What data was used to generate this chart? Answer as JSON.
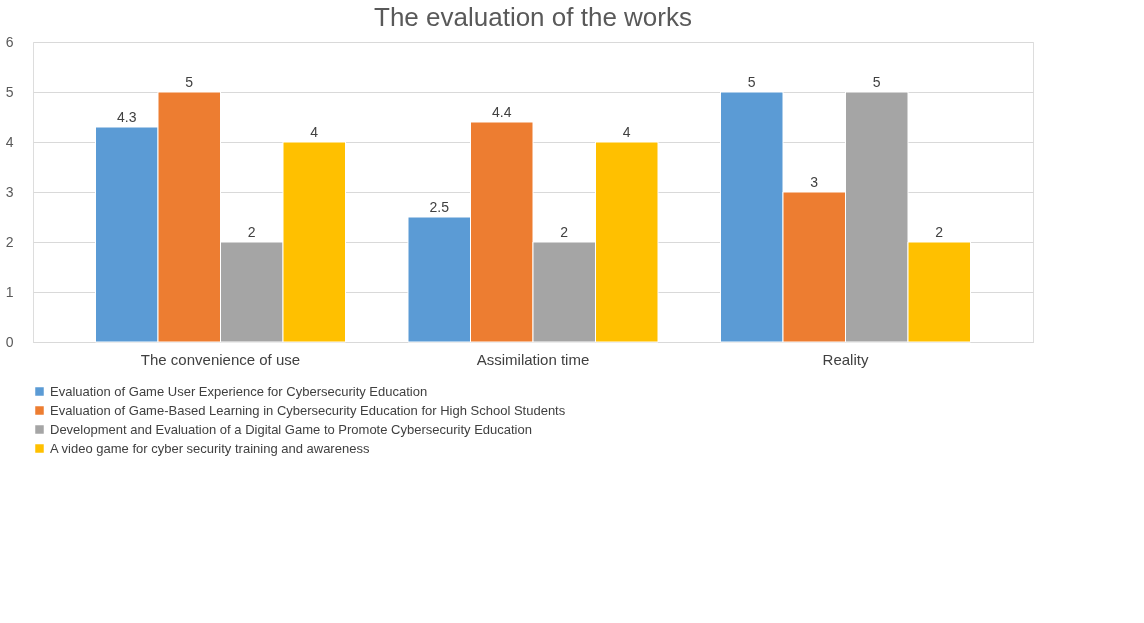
{
  "chart_data": {
    "type": "bar",
    "title": "The evaluation of the works",
    "categories": [
      "The convenience of use",
      "Assimilation time",
      "Reality"
    ],
    "series": [
      {
        "name": "Evaluation of Game User Experience for Cybersecurity Education",
        "color": "#5b9bd5",
        "values": [
          4.3,
          2.5,
          5
        ]
      },
      {
        "name": "Evaluation of Game-Based Learning in Cybersecurity Education for High School Students",
        "color": "#ed7d31",
        "values": [
          5,
          4.4,
          3
        ]
      },
      {
        "name": "Development and Evaluation of a Digital Game to Promote Cybersecurity Education",
        "color": "#a5a5a5",
        "values": [
          2,
          2,
          5
        ]
      },
      {
        "name": "A video game for cyber security training and awareness",
        "color": "#ffc000",
        "values": [
          4,
          4,
          2
        ]
      }
    ],
    "ylim": [
      0,
      6
    ],
    "yticks": [
      0,
      1,
      2,
      3,
      4,
      5,
      6
    ],
    "grid": "y",
    "legend": "bottom",
    "data_labels": true
  }
}
